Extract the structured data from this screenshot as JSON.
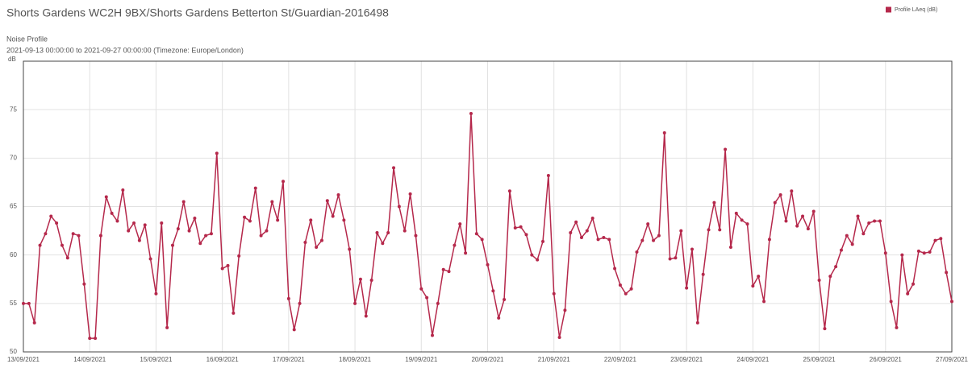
{
  "chart_data": {
    "type": "line",
    "title": "Shorts Gardens WC2H 9BX/Shorts Gardens Betterton St/Guardian-2016498",
    "subtitle": "Noise Profile",
    "range_text": "2021-09-13 00:00:00 to 2021-09-27 00:00:00 (Timezone: Europe/London)",
    "y_label": "dB",
    "legend": "top-right",
    "grid": true,
    "ylim": [
      50,
      80
    ],
    "yticks": [
      50,
      55,
      60,
      65,
      70,
      75
    ],
    "xlim": [
      "2021-09-13 00:00",
      "2021-09-27 00:00"
    ],
    "xticks": [
      {
        "value": "2021-09-13 00:00",
        "label": "13/09/2021"
      },
      {
        "value": "2021-09-14 00:00",
        "label": "14/09/2021"
      },
      {
        "value": "2021-09-15 00:00",
        "label": "15/09/2021"
      },
      {
        "value": "2021-09-16 00:00",
        "label": "16/09/2021"
      },
      {
        "value": "2021-09-17 00:00",
        "label": "17/09/2021"
      },
      {
        "value": "2021-09-18 00:00",
        "label": "18/09/2021"
      },
      {
        "value": "2021-09-19 00:00",
        "label": "19/09/2021"
      },
      {
        "value": "2021-09-20 00:00",
        "label": "20/09/2021"
      },
      {
        "value": "2021-09-21 00:00",
        "label": "21/09/2021"
      },
      {
        "value": "2021-09-22 00:00",
        "label": "22/09/2021"
      },
      {
        "value": "2021-09-23 00:00",
        "label": "23/09/2021"
      },
      {
        "value": "2021-09-24 00:00",
        "label": "24/09/2021"
      },
      {
        "value": "2021-09-25 00:00",
        "label": "25/09/2021"
      },
      {
        "value": "2021-09-26 00:00",
        "label": "26/09/2021"
      },
      {
        "value": "2021-09-27 00:00",
        "label": "27/09/2021"
      }
    ],
    "x": [
      "2021-09-13 00:00",
      "2021-09-13 02:00",
      "2021-09-13 04:00",
      "2021-09-13 06:00",
      "2021-09-13 08:00",
      "2021-09-13 10:00",
      "2021-09-13 12:00",
      "2021-09-13 14:00",
      "2021-09-13 16:00",
      "2021-09-13 18:00",
      "2021-09-13 20:00",
      "2021-09-13 22:00",
      "2021-09-14 00:00",
      "2021-09-14 02:00",
      "2021-09-14 04:00",
      "2021-09-14 06:00",
      "2021-09-14 08:00",
      "2021-09-14 10:00",
      "2021-09-14 12:00",
      "2021-09-14 14:00",
      "2021-09-14 16:00",
      "2021-09-14 18:00",
      "2021-09-14 20:00",
      "2021-09-14 22:00",
      "2021-09-15 00:00",
      "2021-09-15 02:00",
      "2021-09-15 04:00",
      "2021-09-15 06:00",
      "2021-09-15 08:00",
      "2021-09-15 10:00",
      "2021-09-15 12:00",
      "2021-09-15 14:00",
      "2021-09-15 16:00",
      "2021-09-15 18:00",
      "2021-09-15 20:00",
      "2021-09-15 22:00",
      "2021-09-16 00:00",
      "2021-09-16 02:00",
      "2021-09-16 04:00",
      "2021-09-16 06:00",
      "2021-09-16 08:00",
      "2021-09-16 10:00",
      "2021-09-16 12:00",
      "2021-09-16 14:00",
      "2021-09-16 16:00",
      "2021-09-16 18:00",
      "2021-09-16 20:00",
      "2021-09-16 22:00",
      "2021-09-17 00:00",
      "2021-09-17 02:00",
      "2021-09-17 04:00",
      "2021-09-17 06:00",
      "2021-09-17 08:00",
      "2021-09-17 10:00",
      "2021-09-17 12:00",
      "2021-09-17 14:00",
      "2021-09-17 16:00",
      "2021-09-17 18:00",
      "2021-09-17 20:00",
      "2021-09-17 22:00",
      "2021-09-18 00:00",
      "2021-09-18 02:00",
      "2021-09-18 04:00",
      "2021-09-18 06:00",
      "2021-09-18 08:00",
      "2021-09-18 10:00",
      "2021-09-18 12:00",
      "2021-09-18 14:00",
      "2021-09-18 16:00",
      "2021-09-18 18:00",
      "2021-09-18 20:00",
      "2021-09-18 22:00",
      "2021-09-19 00:00",
      "2021-09-19 02:00",
      "2021-09-19 04:00",
      "2021-09-19 06:00",
      "2021-09-19 08:00",
      "2021-09-19 10:00",
      "2021-09-19 12:00",
      "2021-09-19 14:00",
      "2021-09-19 16:00",
      "2021-09-19 18:00",
      "2021-09-19 20:00",
      "2021-09-19 22:00",
      "2021-09-20 00:00",
      "2021-09-20 02:00",
      "2021-09-20 04:00",
      "2021-09-20 06:00",
      "2021-09-20 08:00",
      "2021-09-20 10:00",
      "2021-09-20 12:00",
      "2021-09-20 14:00",
      "2021-09-20 16:00",
      "2021-09-20 18:00",
      "2021-09-20 20:00",
      "2021-09-20 22:00",
      "2021-09-21 00:00",
      "2021-09-21 02:00",
      "2021-09-21 04:00",
      "2021-09-21 06:00",
      "2021-09-21 08:00",
      "2021-09-21 10:00",
      "2021-09-21 12:00",
      "2021-09-21 14:00",
      "2021-09-21 16:00",
      "2021-09-21 18:00",
      "2021-09-21 20:00",
      "2021-09-21 22:00",
      "2021-09-22 00:00",
      "2021-09-22 02:00",
      "2021-09-22 04:00",
      "2021-09-22 06:00",
      "2021-09-22 08:00",
      "2021-09-22 10:00",
      "2021-09-22 12:00",
      "2021-09-22 14:00",
      "2021-09-22 16:00",
      "2021-09-22 18:00",
      "2021-09-22 20:00",
      "2021-09-22 22:00",
      "2021-09-23 00:00",
      "2021-09-23 02:00",
      "2021-09-23 04:00",
      "2021-09-23 06:00",
      "2021-09-23 08:00",
      "2021-09-23 10:00",
      "2021-09-23 12:00",
      "2021-09-23 14:00",
      "2021-09-23 16:00",
      "2021-09-23 18:00",
      "2021-09-23 20:00",
      "2021-09-23 22:00",
      "2021-09-24 00:00",
      "2021-09-24 02:00",
      "2021-09-24 04:00",
      "2021-09-24 06:00",
      "2021-09-24 08:00",
      "2021-09-24 10:00",
      "2021-09-24 12:00",
      "2021-09-24 14:00",
      "2021-09-24 16:00",
      "2021-09-24 18:00",
      "2021-09-24 20:00",
      "2021-09-24 22:00",
      "2021-09-25 00:00",
      "2021-09-25 02:00",
      "2021-09-25 04:00",
      "2021-09-25 06:00",
      "2021-09-25 08:00",
      "2021-09-25 10:00",
      "2021-09-25 12:00",
      "2021-09-25 14:00",
      "2021-09-25 16:00",
      "2021-09-25 18:00",
      "2021-09-25 20:00",
      "2021-09-25 22:00",
      "2021-09-26 00:00",
      "2021-09-26 02:00",
      "2021-09-26 04:00",
      "2021-09-26 06:00",
      "2021-09-26 08:00",
      "2021-09-26 10:00",
      "2021-09-26 12:00",
      "2021-09-26 14:00",
      "2021-09-26 16:00",
      "2021-09-26 18:00",
      "2021-09-26 20:00",
      "2021-09-26 22:00",
      "2021-09-27 00:00"
    ],
    "series": [
      {
        "name": "Profile LAeq (dB)",
        "color": "#b5284b",
        "values": [
          55,
          55,
          53,
          61,
          62.2,
          64,
          63.3,
          61,
          59.7,
          62.2,
          62,
          57,
          51.4,
          51.4,
          62,
          66,
          64.3,
          63.5,
          66.7,
          62.5,
          63.3,
          61.5,
          63.1,
          59.6,
          56,
          63.3,
          52.5,
          61,
          62.7,
          65.5,
          62.5,
          63.8,
          61.2,
          62,
          62.2,
          70.5,
          58.6,
          58.9,
          54,
          59.9,
          63.9,
          63.5,
          66.9,
          62,
          62.5,
          65.5,
          63.6,
          67.6,
          55.5,
          52.3,
          55,
          61.3,
          63.6,
          60.8,
          61.5,
          65.6,
          64,
          66.2,
          63.6,
          60.6,
          55,
          57.5,
          53.7,
          57.4,
          62.3,
          61.2,
          62.3,
          69,
          65,
          62.5,
          66.3,
          62,
          56.5,
          55.6,
          51.7,
          55,
          58.5,
          58.3,
          61,
          63.2,
          60.2,
          74.6,
          62.2,
          61.6,
          59,
          56.3,
          53.5,
          55.4,
          66.6,
          62.8,
          62.9,
          62.1,
          60,
          59.5,
          61.4,
          68.2,
          56,
          51.5,
          54.3,
          62.3,
          63.4,
          61.8,
          62.5,
          63.8,
          61.6,
          61.8,
          61.6,
          58.6,
          56.9,
          56,
          56.5,
          60.3,
          61.5,
          63.2,
          61.5,
          62,
          72.6,
          59.6,
          59.7,
          62.5,
          56.6,
          60.6,
          53,
          58,
          62.6,
          65.4,
          62.6,
          70.9,
          60.8,
          64.3,
          63.6,
          63.2,
          56.8,
          57.8,
          55.2,
          61.6,
          65.4,
          66.2,
          63.5,
          66.6,
          63,
          64,
          62.7,
          64.5,
          57.4,
          52.4,
          57.8,
          58.8,
          60.5,
          62,
          61.1,
          64,
          62.2,
          63.3,
          63.5,
          63.5,
          60.2,
          55.2,
          52.5,
          60,
          56,
          57,
          60.4,
          60.2,
          60.3,
          61.5,
          61.7,
          58.2,
          55.2
        ]
      }
    ]
  }
}
